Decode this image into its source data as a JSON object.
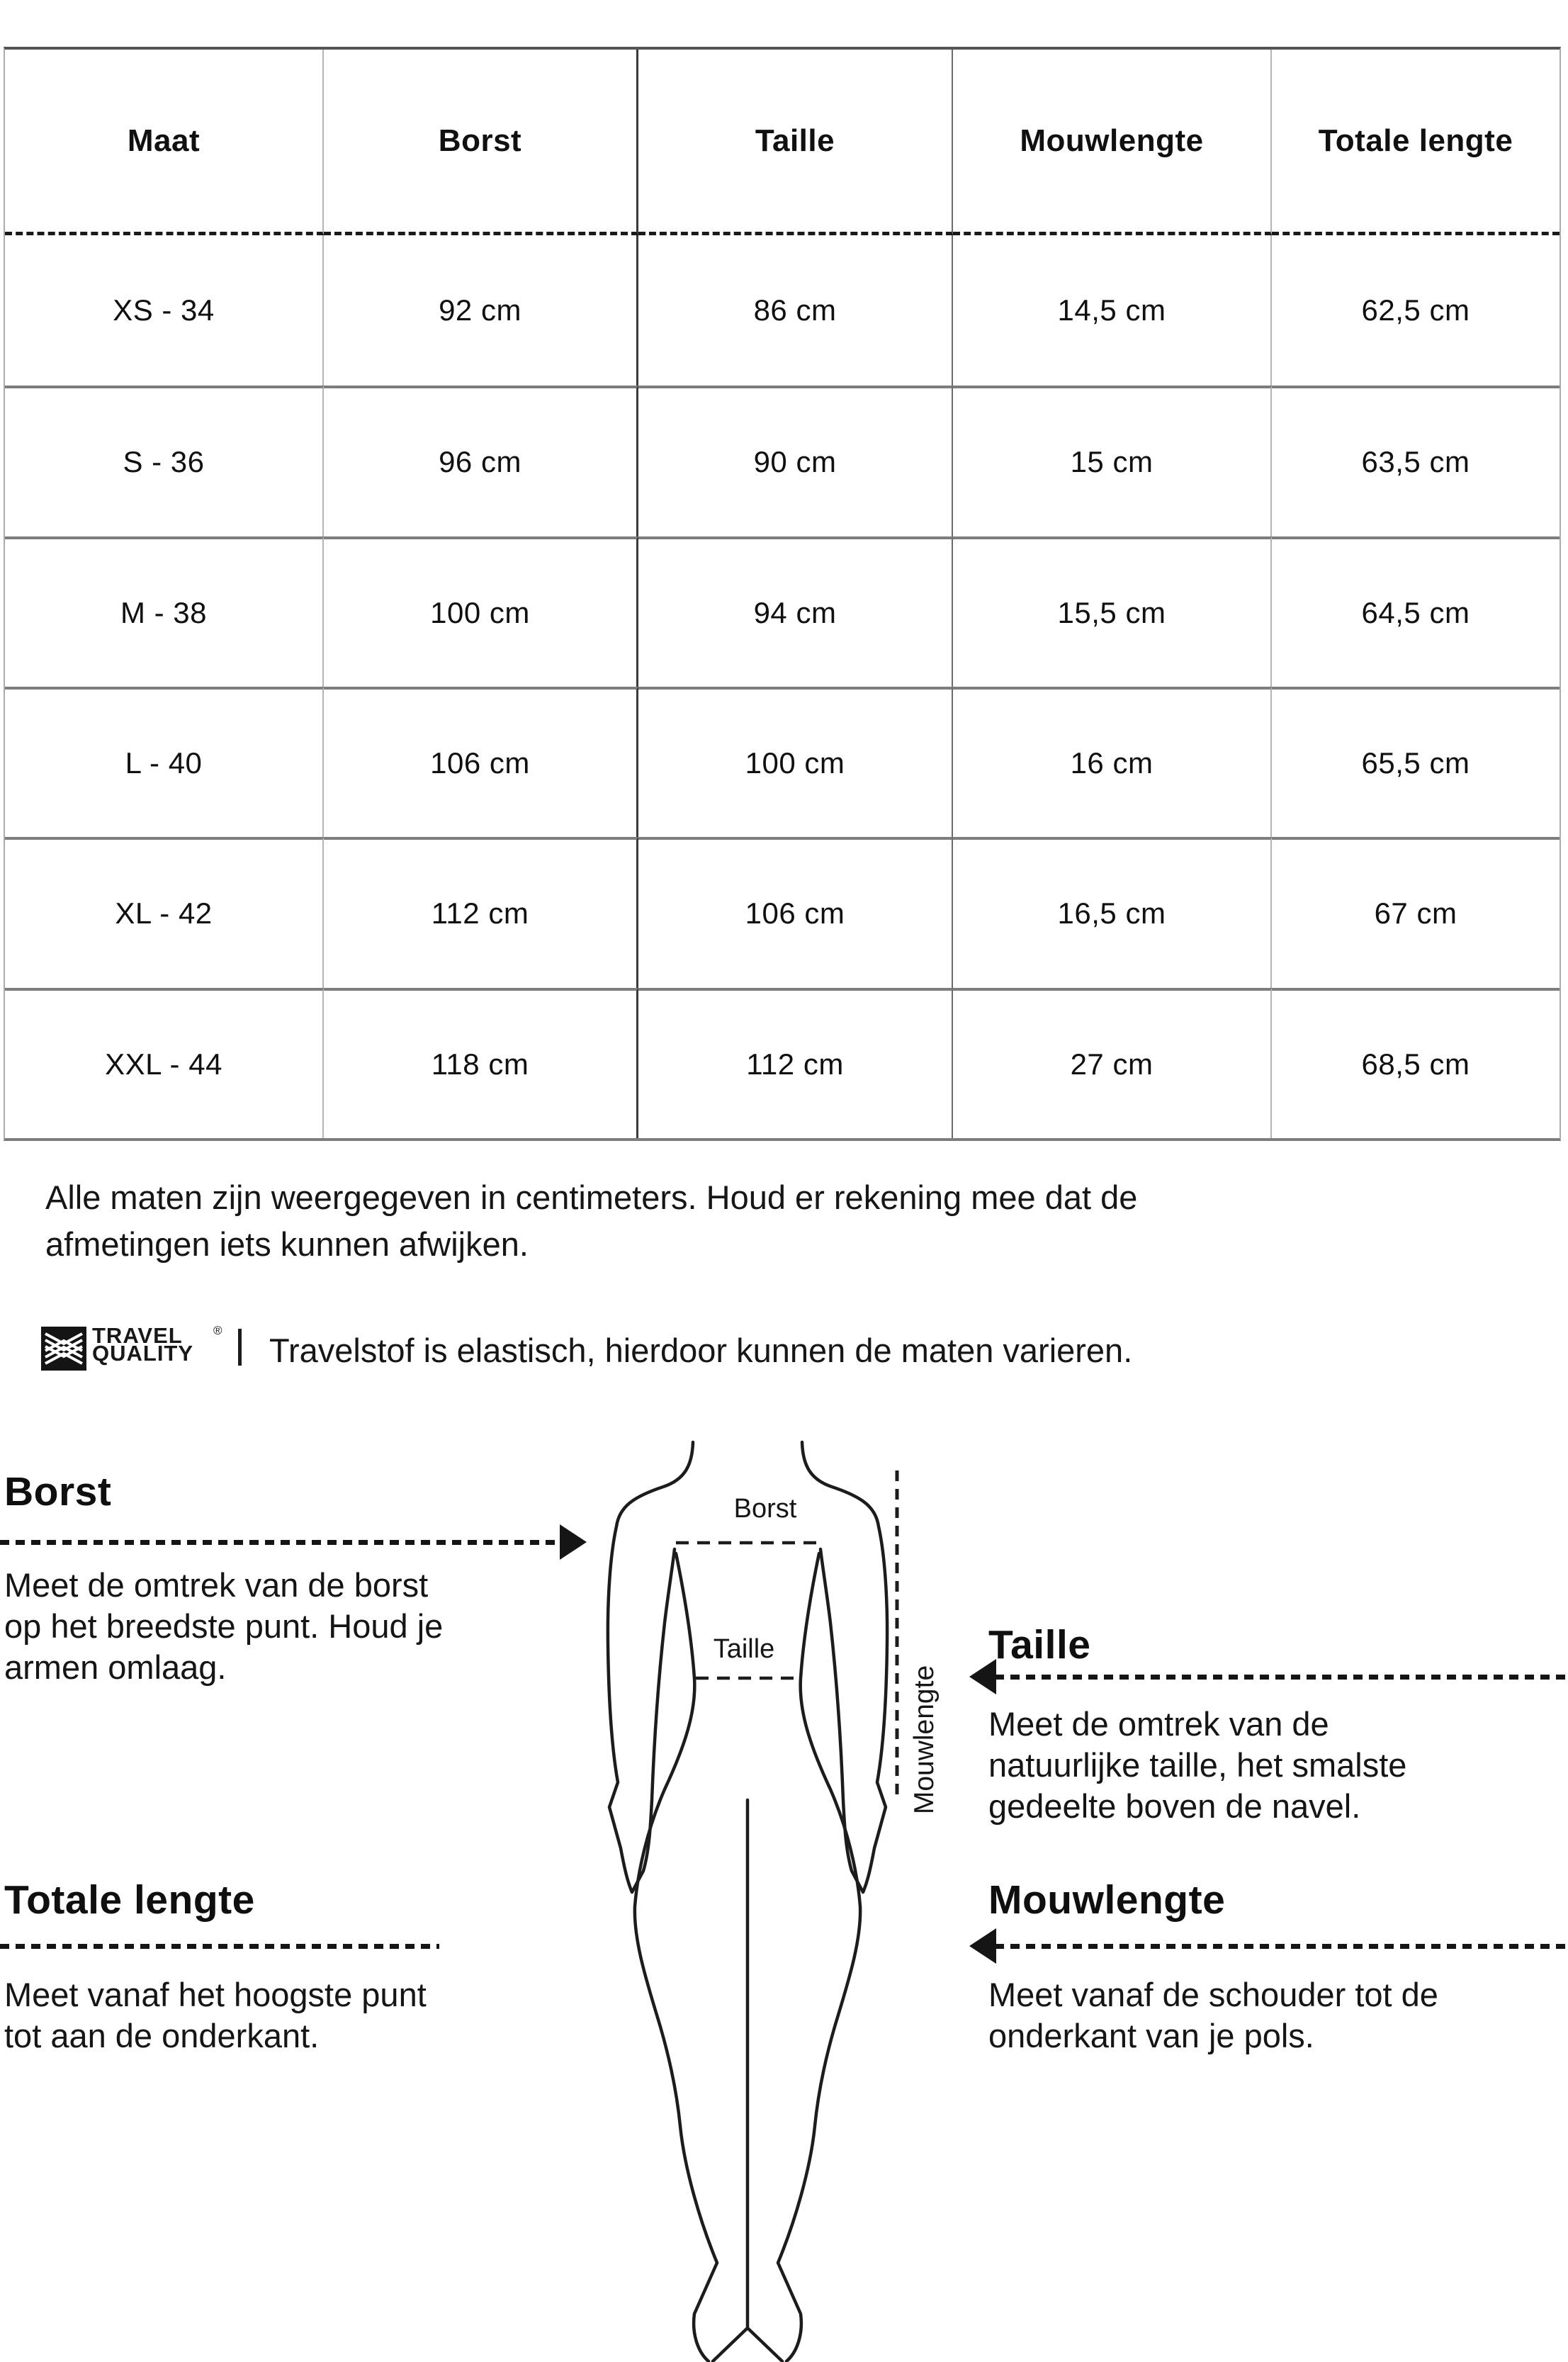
{
  "table": {
    "headers": [
      "Maat",
      "Borst",
      "Taille",
      "Mouwlengte",
      "Totale lengte"
    ],
    "rows": [
      [
        "XS - 34",
        "92 cm",
        "86 cm",
        "14,5 cm",
        "62,5 cm"
      ],
      [
        "S - 36",
        "96 cm",
        "90 cm",
        "15 cm",
        "63,5 cm"
      ],
      [
        "M - 38",
        "100 cm",
        "94 cm",
        "15,5 cm",
        "64,5 cm"
      ],
      [
        "L - 40",
        "106 cm",
        "100 cm",
        "16 cm",
        "65,5 cm"
      ],
      [
        "XL - 42",
        "112 cm",
        "106 cm",
        "16,5 cm",
        "67 cm"
      ],
      [
        "XXL - 44",
        "118 cm",
        "112 cm",
        "27 cm",
        "68,5 cm"
      ]
    ]
  },
  "note": {
    "line1": "Alle maten zijn weergegeven in centimeters. Houd er rekening mee dat de",
    "line2": "afmetingen iets kunnen afwijken."
  },
  "brand": {
    "name_line1": "TRAVEL",
    "name_line2": "QUALITY",
    "registered_mark": "®",
    "separator": "|",
    "note": "Travelstof is elastisch, hierdoor kunnen de maten varieren."
  },
  "guide": {
    "borst": {
      "title": "Borst",
      "lines": [
        "Meet de omtrek van de borst",
        "op het breedste punt. Houd je",
        "armen omlaag."
      ]
    },
    "taille": {
      "title": "Taille",
      "lines": [
        "Meet de omtrek van de",
        "natuurlijke taille, het smalste",
        "gedeelte boven de navel."
      ]
    },
    "totale_lengte": {
      "title": "Totale lengte",
      "lines": [
        "Meet vanaf het hoogste punt",
        "tot aan de onderkant."
      ]
    },
    "mouwlengte": {
      "title": "Mouwlengte",
      "lines": [
        "Meet vanaf de schouder tot de",
        "onderkant van je pols."
      ]
    }
  },
  "figure": {
    "chest_label": "Borst",
    "waist_label": "Taille",
    "sleeve_label": "Mouwlengte"
  },
  "colors": {
    "ink": "#141414",
    "table_row_line": "#7d7d7d",
    "table_col_light": "#b5b5b5",
    "table_col_dark": "#3a3a3a"
  }
}
